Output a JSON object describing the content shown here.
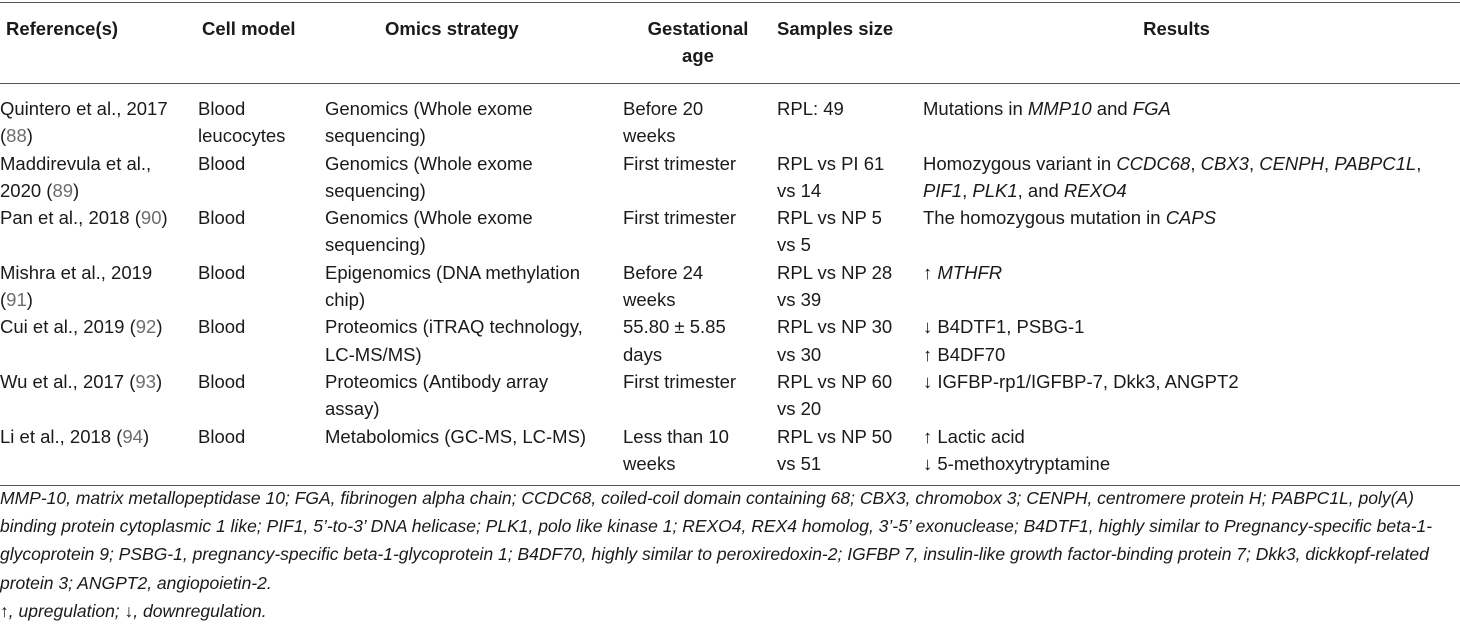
{
  "headers": {
    "ref": "Reference(s)",
    "cell": "Cell model",
    "omics": "Omics strategy",
    "gestational_1": "Gestational",
    "gestational_2": "age",
    "samples": "Samples size",
    "results": "Results"
  },
  "rows": [
    {
      "ref_1": "Quintero et al., 2017",
      "ref_2": "(",
      "ref_num": "88",
      "ref_3": ")",
      "cell_1": "Blood",
      "cell_2": "leucocytes",
      "omics_1": "Genomics (Whole exome",
      "omics_2": "sequencing)",
      "ges_1": "Before 20",
      "ges_2": "weeks",
      "samp_1": "RPL: 49",
      "samp_2": "",
      "res": [
        "Mutations in ",
        "MMP10",
        " and ",
        "FGA"
      ]
    },
    {
      "ref_1": "Maddirevula et al.,",
      "ref_2": "2020 (",
      "ref_num": "89",
      "ref_3": ")",
      "cell_1": "Blood",
      "cell_2": "",
      "omics_1": "Genomics (Whole exome",
      "omics_2": "sequencing)",
      "ges_1": "First trimester",
      "ges_2": "",
      "samp_1": "RPL vs PI 61",
      "samp_2": "vs 14",
      "res_line1": [
        "Homozygous variant in ",
        "CCDC68",
        ", ",
        "CBX3",
        ", ",
        "CENPH",
        ", ",
        "PABPC1L",
        ","
      ],
      "res_line2": [
        "PIF1",
        ", ",
        "PLK1",
        ", and ",
        "REXO4"
      ]
    },
    {
      "ref_1": "Pan et al., 2018 (",
      "ref_num": "90",
      "ref_3": ")",
      "cell_1": "Blood",
      "omics_1": "Genomics (Whole exome",
      "omics_2": "sequencing)",
      "ges_1": "First trimester",
      "samp_1": "RPL vs NP 5",
      "samp_2": "vs 5",
      "res": [
        "The homozygous mutation in ",
        "CAPS"
      ]
    },
    {
      "ref_1": "Mishra et al., 2019",
      "ref_2": "(",
      "ref_num": "91",
      "ref_3": ")",
      "cell_1": "Blood",
      "omics_1": "Epigenomics (DNA methylation",
      "omics_2": "chip)",
      "ges_1": "Before 24",
      "ges_2": "weeks",
      "samp_1": "RPL vs NP 28",
      "samp_2": "vs 39",
      "res": [
        "↑ ",
        "MTHFR"
      ]
    },
    {
      "ref_1": "Cui et al., 2019 (",
      "ref_num": "92",
      "ref_3": ")",
      "cell_1": "Blood",
      "omics_1": "Proteomics (iTRAQ technology,",
      "omics_2": "LC-MS/MS)",
      "ges_1": "55.80 ± 5.85",
      "ges_2": "days",
      "samp_1": "RPL vs NP 30",
      "samp_2": "vs 30",
      "res_1": "↓ B4DTF1, PSBG-1",
      "res_2": "↑ B4DF70"
    },
    {
      "ref_1": "Wu et al., 2017 (",
      "ref_num": "93",
      "ref_3": ")",
      "cell_1": "Blood",
      "omics_1": "Proteomics (Antibody array",
      "omics_2": "assay)",
      "ges_1": "First trimester",
      "samp_1": "RPL vs NP 60",
      "samp_2": "vs 20",
      "res_1": "↓ IGFBP-rp1/IGFBP-7, Dkk3, ANGPT2"
    },
    {
      "ref_1": "Li et al., 2018 (",
      "ref_num": "94",
      "ref_3": ")",
      "cell_1": "Blood",
      "omics_1": "Metabolomics (GC-MS, LC-MS)",
      "ges_1": "Less than 10",
      "ges_2": "weeks",
      "samp_1": "RPL vs NP 50",
      "samp_2": "vs 51",
      "res_1": "↑ Lactic acid",
      "res_2": "↓ 5-methoxytryptamine"
    }
  ],
  "footnote": {
    "line1": "MMP-10, matrix metallopeptidase 10; FGA, fibrinogen alpha chain; CCDC68, coiled-coil domain containing 68; CBX3, chromobox 3; CENPH, centromere protein H; PABPC1L, poly(A)",
    "line2": "binding protein cytoplasmic 1 like; PIF1, 5’-to-3’ DNA helicase; PLK1, polo like kinase 1; REXO4, REX4 homolog, 3’-5’ exonuclease; B4DTF1, highly similar to Pregnancy-specific beta-1-",
    "line3": "glycoprotein 9; PSBG-1, pregnancy-specific beta-1-glycoprotein 1; B4DF70, highly similar to peroxiredoxin-2; IGFBP 7, insulin-like growth factor-binding protein 7; Dkk3, dickkopf-related",
    "line4": "protein 3; ANGPT2, angiopoietin-2.",
    "legend": "↑, upregulation; ↓, downregulation."
  },
  "colors": {
    "text": "#1a1a1a",
    "ref_link": "#6d6d6d",
    "rule": "#555555"
  }
}
